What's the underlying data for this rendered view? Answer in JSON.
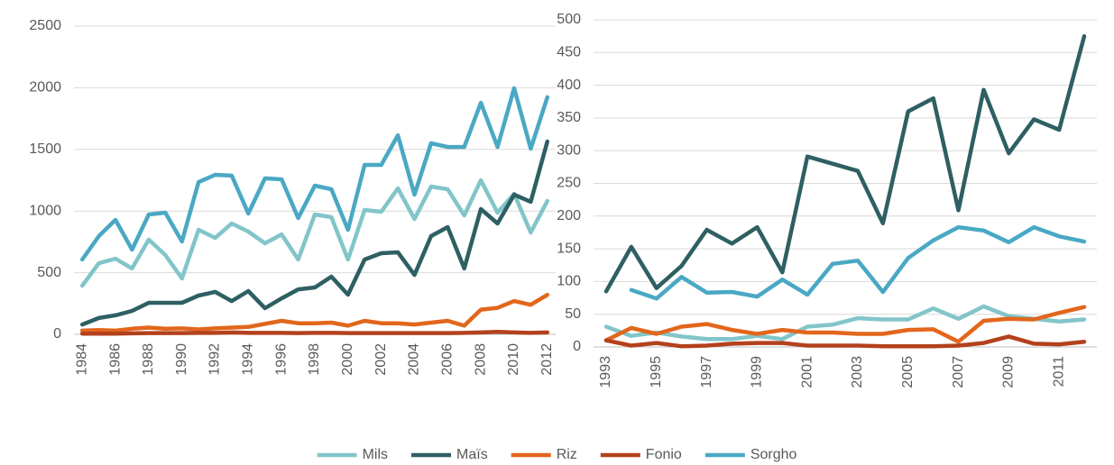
{
  "chart_data": [
    {
      "type": "line",
      "categories": [
        "1984",
        null,
        "1986",
        null,
        "1988",
        null,
        "1990",
        null,
        "1992",
        null,
        "1994",
        null,
        "1996",
        null,
        "1998",
        null,
        "2000",
        null,
        "2002",
        null,
        "2004",
        null,
        "2006",
        null,
        "2008",
        null,
        "2010",
        null,
        "2012"
      ],
      "ylim": [
        0,
        2500
      ],
      "yticks": [
        0,
        500,
        1000,
        1500,
        2000,
        2500
      ],
      "grid": true,
      "series": [
        {
          "name": "Mils",
          "color": "#82c5c9",
          "values": [
            395,
            577,
            614,
            534,
            768,
            643,
            453,
            848,
            782,
            899,
            833,
            738,
            811,
            607,
            972,
            950,
            607,
            1009,
            994,
            1184,
            936,
            1199,
            1177,
            965,
            1250,
            987,
            1140,
            826,
            1082
          ]
        },
        {
          "name": "Maïs",
          "color": "#2e5f63",
          "values": [
            80,
            132,
            154,
            190,
            256,
            256,
            256,
            314,
            344,
            270,
            351,
            212,
            292,
            365,
            380,
            468,
            322,
            607,
            658,
            665,
            482,
            797,
            870,
            534,
            1016,
            899,
            1133,
            1075,
            1564
          ]
        },
        {
          "name": "Riz",
          "color": "#e2661c",
          "values": [
            30,
            35,
            30,
            45,
            55,
            45,
            48,
            40,
            48,
            55,
            60,
            85,
            110,
            90,
            90,
            95,
            70,
            110,
            90,
            90,
            80,
            95,
            110,
            70,
            200,
            215,
            270,
            240,
            320
          ]
        },
        {
          "name": "Fonio",
          "color": "#b3411b",
          "values": [
            5,
            5,
            5,
            8,
            10,
            10,
            10,
            12,
            12,
            15,
            12,
            12,
            12,
            10,
            12,
            12,
            10,
            10,
            10,
            10,
            10,
            10,
            10,
            12,
            15,
            20,
            15,
            12,
            15
          ]
        },
        {
          "name": "Sorgho",
          "color": "#4aa8c4",
          "values": [
            607,
            797,
            928,
            687,
            972,
            987,
            753,
            1235,
            1294,
            1287,
            980,
            1265,
            1257,
            943,
            1206,
            1177,
            848,
            1374,
            1374,
            1615,
            1133,
            1550,
            1520,
            1520,
            1879,
            1520,
            1996,
            1506,
            1923
          ]
        }
      ]
    },
    {
      "type": "line",
      "categories": [
        "1993",
        null,
        "1995",
        null,
        "1997",
        null,
        "1999",
        null,
        "2001",
        null,
        "2003",
        null,
        "2005",
        null,
        "2007",
        null,
        "2009",
        null,
        "2011",
        null
      ],
      "ylim": [
        0,
        500
      ],
      "yticks": [
        0,
        50,
        100,
        150,
        200,
        250,
        300,
        350,
        400,
        450,
        500
      ],
      "grid": true,
      "series": [
        {
          "name": "Mils",
          "color": "#82c5c9",
          "values": [
            31,
            17,
            22,
            16,
            12,
            12,
            17,
            12,
            31,
            34,
            44,
            42,
            42,
            59,
            43,
            62,
            47,
            43,
            39,
            42
          ]
        },
        {
          "name": "Maïs",
          "color": "#2e5f63",
          "values": [
            85,
            153,
            90,
            124,
            179,
            158,
            183,
            114,
            291,
            280,
            269,
            189,
            360,
            380,
            209,
            393,
            296,
            348,
            332,
            475
          ]
        },
        {
          "name": "Riz",
          "color": "#e2661c",
          "values": [
            10,
            29,
            20,
            31,
            35,
            26,
            20,
            26,
            22,
            22,
            20,
            20,
            26,
            27,
            8,
            40,
            43,
            42,
            52,
            61
          ]
        },
        {
          "name": "Fonio",
          "color": "#b3411b",
          "values": [
            10,
            2,
            6,
            1,
            2,
            5,
            6,
            6,
            2,
            2,
            2,
            1,
            1,
            1,
            2,
            6,
            16,
            5,
            4,
            8
          ]
        },
        {
          "name": "Sorgho",
          "color": "#4aa8c4",
          "values": [
            null,
            87,
            74,
            107,
            83,
            84,
            77,
            103,
            80,
            127,
            132,
            84,
            136,
            163,
            183,
            178,
            160,
            183,
            169,
            161
          ]
        }
      ]
    }
  ]
}
